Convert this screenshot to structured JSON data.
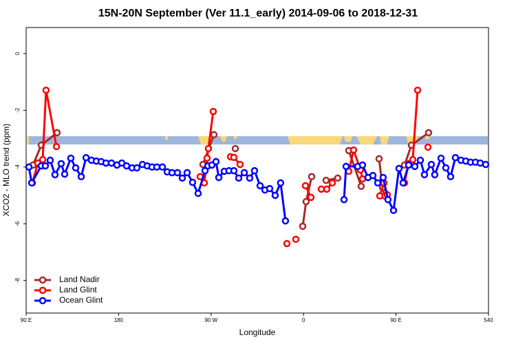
{
  "chart_data": {
    "type": "line",
    "title": "15N-20N September (Ver 11.1_early)   2014-09-06 to 2018-12-31",
    "xlabel": "Longitude",
    "ylabel": "XCO2 - MLO trend (ppm)",
    "xlim": [
      90,
      540
    ],
    "ylim": [
      -9.15,
      0.92
    ],
    "xticks": [
      {
        "value": 90,
        "label": "90 E"
      },
      180,
      {
        "value": 270,
        "label": "90 W"
      },
      {
        "value": 360,
        "label": "0"
      },
      {
        "value": 450,
        "label": "90 E"
      },
      540
    ],
    "yticks": [
      0,
      -2,
      -4,
      -6,
      -8
    ],
    "legend": "bottom-left",
    "series": [
      {
        "name": "Land Nadir",
        "color": "#a52a2a",
        "x": [
          96.7,
          104.7,
          120.1,
          null,
          262.1,
          272.8,
          null,
          293.6,
          null,
          359.2,
          362.5,
          367.9,
          null,
          381.9,
          393.3,
          null,
          404.0,
          416.1,
          null,
          433.5,
          436.9,
          438.9,
          null,
          458.3,
          465.0,
          481.7
        ],
        "values": [
          -3.93,
          -3.23,
          -2.79,
          null,
          -3.91,
          -2.86,
          null,
          -3.35,
          null,
          -6.09,
          -5.22,
          -4.34,
          null,
          -4.47,
          -4.39,
          null,
          -3.42,
          -4.68,
          null,
          -3.71,
          -4.73,
          -5.02,
          null,
          -3.93,
          -3.23,
          -2.79
        ]
      },
      {
        "name": "Land Glint",
        "color": "#ff0000",
        "x": [
          96.1,
          101.4,
          106.1,
          109.4,
          119.5,
          null,
          259.4,
          263.4,
          266.1,
          267.4,
          272.1,
          null,
          288.9,
          292.2,
          298.2,
          null,
          343.8,
          null,
          352.5,
          null,
          361.9,
          367.2,
          null,
          377.3,
          382.6,
          388.0,
          null,
          404.0,
          408.7,
          415.4,
          417.4,
          null,
          434.2,
          438.2,
          441.5,
          null,
          458.3,
          462.3,
          466.3,
          471.0,
          null,
          481.1
        ],
        "values": [
          -4.56,
          -3.86,
          -3.74,
          -1.29,
          -3.28,
          null,
          -4.34,
          -4.56,
          -3.69,
          -3.35,
          -2.04,
          null,
          -3.64,
          -3.66,
          -3.91,
          null,
          -6.7,
          null,
          -6.55,
          null,
          -4.66,
          -5.07,
          null,
          -4.78,
          -4.78,
          -4.56,
          null,
          -4.15,
          -3.4,
          -4.1,
          -4.42,
          null,
          -5.02,
          -4.56,
          -4.98,
          null,
          -4.56,
          -3.88,
          -3.74,
          -1.29,
          null,
          -3.3
        ]
      },
      {
        "name": "Ocean Glint",
        "color": "#0000ff",
        "x": [
          92.7,
          95.4,
          104.7,
          108.7,
          113.4,
          118.1,
          124.1,
          127.5,
          133.5,
          138.2,
          143.6,
          148.3,
          153.6,
          158.3,
          163.0,
          167.7,
          173.0,
          178.4,
          183.1,
          187.8,
          193.1,
          197.8,
          203.2,
          207.8,
          212.5,
          217.2,
          222.6,
          227.3,
          232.0,
          237.3,
          242.0,
          246.7,
          252.0,
          257.4,
          264.1,
          266.8,
          270.8,
          274.8,
          277.5,
          282.8,
          287.5,
          292.2,
          296.9,
          302.3,
          307.6,
          312.3,
          317.7,
          322.4,
          327.0,
          332.4,
          337.7,
          342.4,
          null,
          399.4,
          401.4,
          412.7,
          417.4,
          422.8,
          427.5,
          432.2,
          437.5,
          442.2,
          447.6,
          452.9,
          456.9,
          462.3,
          468.3,
          473.7,
          477.7,
          484.4,
          487.7,
          493.8,
          498.5,
          503.1,
          507.8,
          513.2,
          517.9,
          522.6,
          527.3,
          532.0,
          537.3
        ],
        "values": [
          -4.0,
          -4.56,
          -3.96,
          -3.96,
          -3.76,
          -4.27,
          -3.88,
          -4.25,
          -3.69,
          -4.03,
          -4.34,
          -3.67,
          -3.76,
          -3.79,
          -3.81,
          -3.86,
          -3.86,
          -3.93,
          -3.86,
          -3.96,
          -4.03,
          -4.03,
          -3.91,
          -3.96,
          -4.0,
          -4.0,
          -4.0,
          -4.17,
          -4.2,
          -4.2,
          -4.39,
          -4.2,
          -4.54,
          -4.93,
          -4.13,
          -3.96,
          -3.93,
          -3.81,
          -4.37,
          -4.15,
          -4.13,
          -4.13,
          -4.39,
          -4.2,
          -4.39,
          -4.13,
          -4.66,
          -4.81,
          -4.76,
          -5.0,
          -4.56,
          -5.9,
          null,
          -5.15,
          -3.98,
          -3.98,
          -3.93,
          -4.37,
          -4.3,
          -4.56,
          -4.37,
          -5.15,
          -5.53,
          -4.05,
          -4.56,
          -3.93,
          -3.98,
          -3.76,
          -4.27,
          -3.91,
          -4.27,
          -3.69,
          -4.03,
          -4.34,
          -3.67,
          -3.76,
          -3.79,
          -3.83,
          -3.83,
          -3.86,
          -3.91
        ]
      }
    ]
  }
}
